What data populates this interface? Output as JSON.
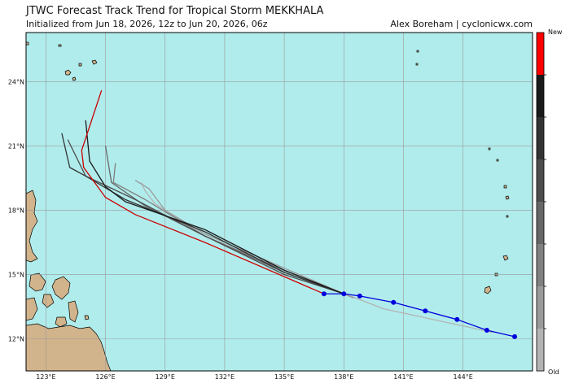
{
  "header": {
    "title": "JTWC Forecast Track Trend for Tropical Storm MEKKHALA",
    "subtitle": "Initialized from Jun 18, 2026, 12z to Jun 20, 2026, 06z",
    "credit": "Alex Boreham | cyclonicwx.com"
  },
  "map": {
    "extent": {
      "lon": [
        122.0,
        147.5
      ],
      "lat": [
        10.5,
        26.3
      ]
    },
    "ocean_color": "#b0ecec",
    "land_color": "#d2b48c",
    "grid": true,
    "lon_ticks": [
      {
        "value": 123,
        "label": "123°E"
      },
      {
        "value": 126,
        "label": "126°E"
      },
      {
        "value": 129,
        "label": "129°E"
      },
      {
        "value": 132,
        "label": "132°E"
      },
      {
        "value": 135,
        "label": "135°E"
      },
      {
        "value": 138,
        "label": "138°E"
      },
      {
        "value": 141,
        "label": "141°E"
      },
      {
        "value": 144,
        "label": "144°E"
      }
    ],
    "lat_ticks": [
      {
        "value": 12,
        "label": "12°N"
      },
      {
        "value": 15,
        "label": "15°N"
      },
      {
        "value": 18,
        "label": "18°N"
      },
      {
        "value": 21,
        "label": "21°N"
      },
      {
        "value": 24,
        "label": "24°N"
      }
    ]
  },
  "colorbar": {
    "top_label": "New",
    "bottom_label": "Old",
    "colors": [
      "#ff0000",
      "#1a1a1a",
      "#333333",
      "#4d4d4d",
      "#676767",
      "#808080",
      "#9a9a9a",
      "#b3b3b3"
    ]
  },
  "tracks": [
    {
      "color": "#b3b3b3",
      "points": [
        [
          145.5,
          12.3
        ],
        [
          140.0,
          13.4
        ],
        [
          135.0,
          15.2
        ],
        [
          131.0,
          16.8
        ],
        [
          128.5,
          18.3
        ],
        [
          128.0,
          18.9
        ],
        [
          127.8,
          19.3
        ]
      ]
    },
    {
      "color": "#9a9a9a",
      "points": [
        [
          138.5,
          13.9
        ],
        [
          135.0,
          15.3
        ],
        [
          131.0,
          16.9
        ],
        [
          129.0,
          18.0
        ],
        [
          128.2,
          19.0
        ],
        [
          127.5,
          19.4
        ]
      ]
    },
    {
      "color": "#808080",
      "points": [
        [
          138.0,
          14.1
        ],
        [
          135.0,
          15.2
        ],
        [
          131.0,
          16.8
        ],
        [
          128.0,
          18.5
        ],
        [
          126.4,
          19.3
        ],
        [
          126.5,
          20.2
        ]
      ]
    },
    {
      "color": "#676767",
      "points": [
        [
          138.0,
          14.1
        ],
        [
          135.0,
          15.1
        ],
        [
          131.0,
          16.8
        ],
        [
          128.0,
          18.2
        ],
        [
          126.3,
          19.3
        ],
        [
          126.0,
          21.0
        ]
      ]
    },
    {
      "color": "#4d4d4d",
      "points": [
        [
          138.0,
          14.1
        ],
        [
          135.0,
          15.0
        ],
        [
          131.0,
          16.8
        ],
        [
          127.5,
          18.5
        ],
        [
          125.0,
          19.6
        ],
        [
          124.1,
          21.3
        ]
      ]
    },
    {
      "color": "#333333",
      "points": [
        [
          138.0,
          14.1
        ],
        [
          135.0,
          15.1
        ],
        [
          131.0,
          17.0
        ],
        [
          127.0,
          18.5
        ],
        [
          125.0,
          19.6
        ],
        [
          124.2,
          20.0
        ],
        [
          123.8,
          21.6
        ]
      ]
    },
    {
      "color": "#1a1a1a",
      "points": [
        [
          138.0,
          14.1
        ],
        [
          135.0,
          15.2
        ],
        [
          131.0,
          17.1
        ],
        [
          127.0,
          18.4
        ],
        [
          126.0,
          19.1
        ],
        [
          125.2,
          20.3
        ],
        [
          125.0,
          22.2
        ]
      ]
    },
    {
      "color": "#cc0000",
      "points": [
        [
          137.0,
          14.1
        ],
        [
          135.0,
          14.9
        ],
        [
          131.0,
          16.5
        ],
        [
          127.5,
          17.8
        ],
        [
          126.0,
          18.6
        ],
        [
          124.9,
          20.0
        ],
        [
          124.8,
          20.8
        ],
        [
          125.8,
          23.6
        ]
      ]
    },
    {
      "color": "#0000dd",
      "points": [
        [
          146.6,
          12.1
        ],
        [
          145.2,
          12.4
        ],
        [
          143.7,
          12.9
        ],
        [
          142.1,
          13.3
        ],
        [
          140.5,
          13.7
        ],
        [
          138.8,
          14.0
        ],
        [
          138.0,
          14.1
        ],
        [
          137.0,
          14.1
        ]
      ],
      "markers": true
    }
  ]
}
